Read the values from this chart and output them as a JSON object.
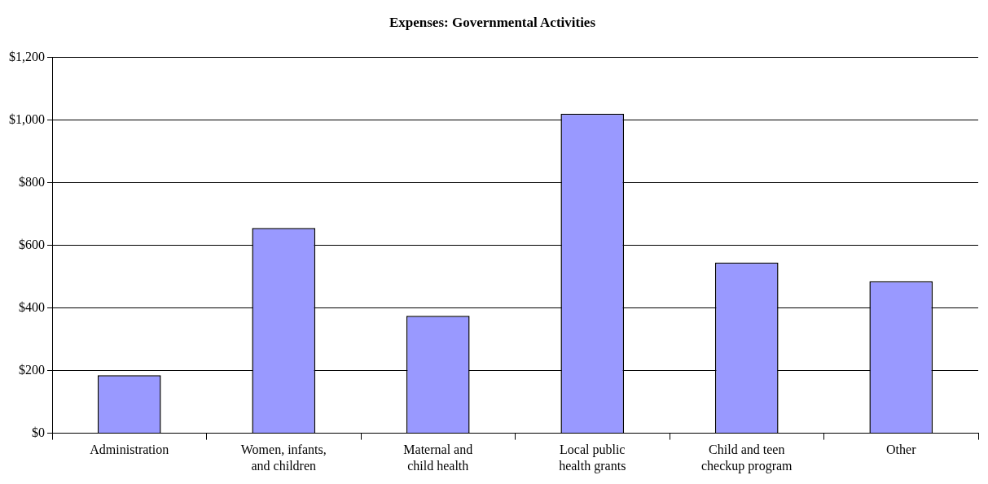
{
  "chart_data": {
    "type": "bar",
    "title": "Expenses: Governmental Activities",
    "categories": [
      "Administration",
      "Women, infants, and children",
      "Maternal and child health",
      "Local public health grants",
      "Child and teen checkup program",
      "Other"
    ],
    "values": [
      185,
      655,
      375,
      1020,
      545,
      485
    ],
    "color": "#9999ff",
    "ylim": [
      0,
      1200
    ],
    "yticks": [
      {
        "value": 0,
        "label": "$0"
      },
      {
        "value": 200,
        "label": "$200"
      },
      {
        "value": 400,
        "label": "$400"
      },
      {
        "value": 600,
        "label": "$600"
      },
      {
        "value": 800,
        "label": "$800"
      },
      {
        "value": 1000,
        "label": "$1,000"
      },
      {
        "value": 1200,
        "label": "$1,200"
      }
    ],
    "grid": "y",
    "legend": false
  }
}
